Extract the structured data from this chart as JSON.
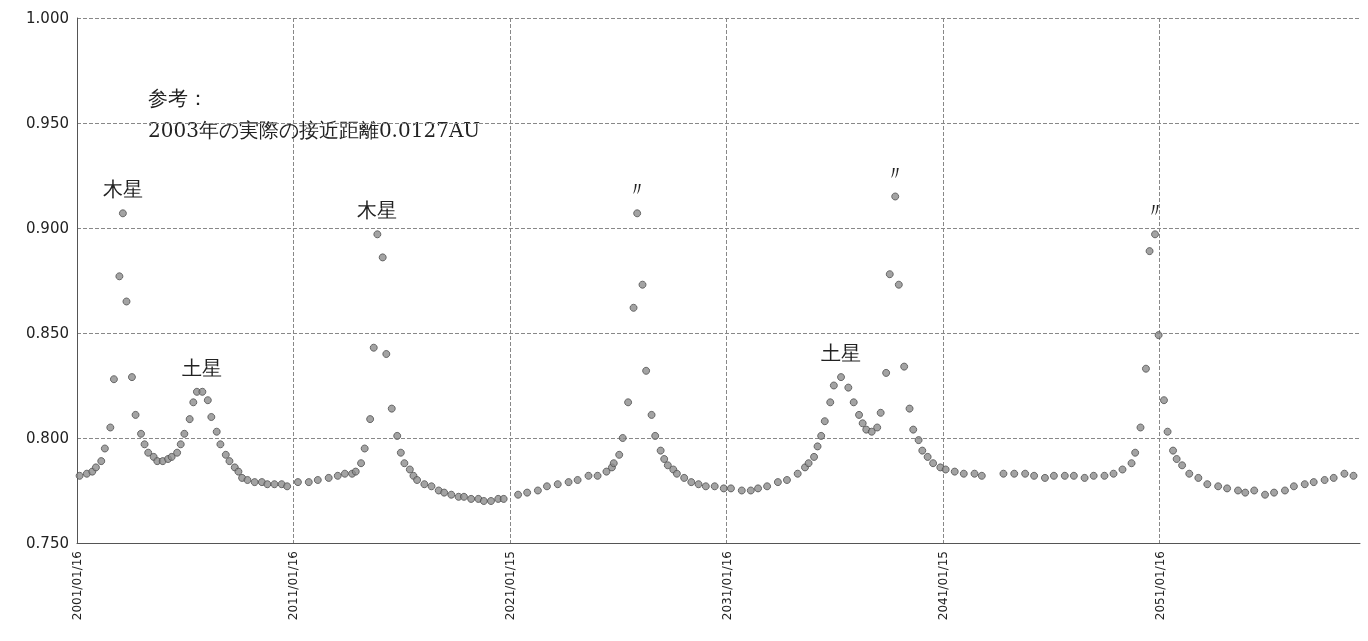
{
  "chart_data": {
    "type": "scatter",
    "annotations": [
      "参考：\n2003年の実際の接近距離0.0127AU",
      {
        "text": "木星",
        "x": "2003-03",
        "y": 0.907
      },
      {
        "text": "土星",
        "x": "2006-11",
        "y": 0.822
      },
      {
        "text": "木星",
        "x": "2014-12",
        "y": 0.897
      },
      {
        "text": "〃",
        "x": "2026-12",
        "y": 0.907
      },
      {
        "text": "土星",
        "x": "2036-05",
        "y": 0.829
      },
      {
        "text": "〃",
        "x": "2038-11",
        "y": 0.915
      },
      {
        "text": "〃",
        "x": "2050-11",
        "y": 0.897
      }
    ],
    "xlim": [
      "2001-01-16",
      "2060-04-20"
    ],
    "xticks": [
      {
        "value": "2001-01-16",
        "label": "2001/01/16"
      },
      {
        "value": "2011-01-16",
        "label": "2011/01/16"
      },
      {
        "value": "2021-01-15",
        "label": "2021/01/15"
      },
      {
        "value": "2031-01-16",
        "label": "2031/01/16"
      },
      {
        "value": "2041-01-15",
        "label": "2041/01/15"
      },
      {
        "value": "2051-01-16",
        "label": "2051/01/16"
      }
    ],
    "ylim": [
      0.75,
      1.0
    ],
    "yticks": [
      {
        "value": 0.75,
        "label": "0.750"
      },
      {
        "value": 0.8,
        "label": "0.800"
      },
      {
        "value": 0.85,
        "label": "0.850"
      },
      {
        "value": 0.9,
        "label": "0.900"
      },
      {
        "value": 0.95,
        "label": "0.950"
      },
      {
        "value": 1.0,
        "label": "1.000"
      }
    ],
    "grid": true,
    "marker": "circle",
    "series": [
      {
        "color": "#8c8c8c",
        "x": [
          "2001-03",
          "2001-07",
          "2001-10",
          "2001-12",
          "2002-03",
          "2002-05",
          "2002-08",
          "2002-10",
          "2003-01",
          "2003-03",
          "2003-05",
          "2003-08",
          "2003-10",
          "2004-01",
          "2004-03",
          "2004-05",
          "2004-08",
          "2004-10",
          "2005-01",
          "2005-04",
          "2005-06",
          "2005-09",
          "2005-11",
          "2006-01",
          "2006-04",
          "2006-06",
          "2006-08",
          "2006-11",
          "2007-02",
          "2007-04",
          "2007-07",
          "2007-09",
          "2007-12",
          "2008-02",
          "2008-05",
          "2008-07",
          "2008-09",
          "2008-12",
          "2009-04",
          "2009-08",
          "2009-11",
          "2010-03",
          "2010-07",
          "2010-10",
          "2011-04",
          "2011-10",
          "2012-03",
          "2012-09",
          "2013-02",
          "2013-06",
          "2013-10",
          "2013-12",
          "2014-03",
          "2014-05",
          "2014-08",
          "2014-10",
          "2014-12",
          "2015-03",
          "2015-05",
          "2015-08",
          "2015-11",
          "2016-01",
          "2016-03",
          "2016-06",
          "2016-08",
          "2016-10",
          "2017-02",
          "2017-06",
          "2017-10",
          "2018-01",
          "2018-05",
          "2018-09",
          "2018-12",
          "2019-04",
          "2019-08",
          "2019-11",
          "2020-03",
          "2020-07",
          "2020-10",
          "2021-06",
          "2021-11",
          "2022-05",
          "2022-10",
          "2023-04",
          "2023-10",
          "2024-03",
          "2024-09",
          "2025-02",
          "2025-07",
          "2025-10",
          "2025-11",
          "2026-02",
          "2026-04",
          "2026-07",
          "2026-10",
          "2026-12",
          "2027-03",
          "2027-05",
          "2027-08",
          "2027-10",
          "2028-01",
          "2028-03",
          "2028-05",
          "2028-08",
          "2028-10",
          "2029-02",
          "2029-06",
          "2029-10",
          "2030-02",
          "2030-07",
          "2030-12",
          "2031-04",
          "2031-10",
          "2032-03",
          "2032-07",
          "2032-12",
          "2033-06",
          "2033-11",
          "2034-05",
          "2034-09",
          "2034-11",
          "2035-02",
          "2035-04",
          "2035-06",
          "2035-08",
          "2035-11",
          "2036-01",
          "2036-05",
          "2036-09",
          "2036-12",
          "2037-03",
          "2037-05",
          "2037-07",
          "2037-10",
          "2038-01",
          "2038-03",
          "2038-06",
          "2038-08",
          "2038-11",
          "2039-01",
          "2039-04",
          "2039-07",
          "2039-09",
          "2039-12",
          "2040-02",
          "2040-05",
          "2040-08",
          "2040-12",
          "2041-03",
          "2041-08",
          "2042-01",
          "2042-07",
          "2042-11",
          "2043-11",
          "2044-05",
          "2044-11",
          "2045-04",
          "2045-10",
          "2046-03",
          "2046-09",
          "2047-02",
          "2047-08",
          "2048-01",
          "2048-07",
          "2048-12",
          "2049-05",
          "2049-10",
          "2049-12",
          "2050-03",
          "2050-06",
          "2050-08",
          "2050-11",
          "2051-01",
          "2051-04",
          "2051-06",
          "2051-09",
          "2051-11",
          "2052-02",
          "2052-06",
          "2052-11",
          "2053-04",
          "2053-10",
          "2054-03",
          "2054-09",
          "2055-01",
          "2055-06",
          "2055-12",
          "2056-05",
          "2056-11",
          "2057-04",
          "2057-10",
          "2058-03",
          "2058-09",
          "2059-02",
          "2059-08",
          "2060-01"
        ],
        "values": [
          0.782,
          0.783,
          0.784,
          0.786,
          0.789,
          0.795,
          0.805,
          0.828,
          0.877,
          0.907,
          0.865,
          0.829,
          0.811,
          0.802,
          0.797,
          0.793,
          0.791,
          0.789,
          0.789,
          0.79,
          0.791,
          0.793,
          0.797,
          0.802,
          0.809,
          0.817,
          0.822,
          0.822,
          0.818,
          0.81,
          0.803,
          0.797,
          0.792,
          0.789,
          0.786,
          0.784,
          0.781,
          0.78,
          0.779,
          0.779,
          0.778,
          0.778,
          0.778,
          0.777,
          0.779,
          0.779,
          0.78,
          0.781,
          0.782,
          0.783,
          0.783,
          0.784,
          0.788,
          0.795,
          0.809,
          0.843,
          0.897,
          0.886,
          0.84,
          0.814,
          0.801,
          0.793,
          0.788,
          0.785,
          0.782,
          0.78,
          0.778,
          0.777,
          0.775,
          0.774,
          0.773,
          0.772,
          0.772,
          0.771,
          0.771,
          0.77,
          0.77,
          0.771,
          0.771,
          0.773,
          0.774,
          0.775,
          0.777,
          0.778,
          0.779,
          0.78,
          0.782,
          0.782,
          0.784,
          0.786,
          0.788,
          0.792,
          0.8,
          0.817,
          0.862,
          0.907,
          0.873,
          0.832,
          0.811,
          0.801,
          0.794,
          0.79,
          0.787,
          0.785,
          0.783,
          0.781,
          0.779,
          0.778,
          0.777,
          0.777,
          0.776,
          0.776,
          0.775,
          0.775,
          0.776,
          0.777,
          0.779,
          0.78,
          0.783,
          0.786,
          0.788,
          0.791,
          0.796,
          0.801,
          0.808,
          0.817,
          0.825,
          0.829,
          0.824,
          0.817,
          0.811,
          0.807,
          0.804,
          0.803,
          0.805,
          0.812,
          0.831,
          0.878,
          0.915,
          0.873,
          0.834,
          0.814,
          0.804,
          0.799,
          0.794,
          0.791,
          0.788,
          0.786,
          0.785,
          0.784,
          0.783,
          0.783,
          0.782,
          0.783,
          0.783,
          0.783,
          0.782,
          0.781,
          0.782,
          0.782,
          0.782,
          0.781,
          0.782,
          0.782,
          0.783,
          0.785,
          0.788,
          0.793,
          0.805,
          0.833,
          0.889,
          0.897,
          0.849,
          0.818,
          0.803,
          0.794,
          0.79,
          0.787,
          0.783,
          0.781,
          0.778,
          0.777,
          0.776,
          0.775,
          0.774,
          0.775,
          0.773,
          0.774,
          0.775,
          0.777,
          0.778,
          0.779,
          0.78,
          0.781,
          0.783,
          0.782
        ]
      }
    ]
  }
}
